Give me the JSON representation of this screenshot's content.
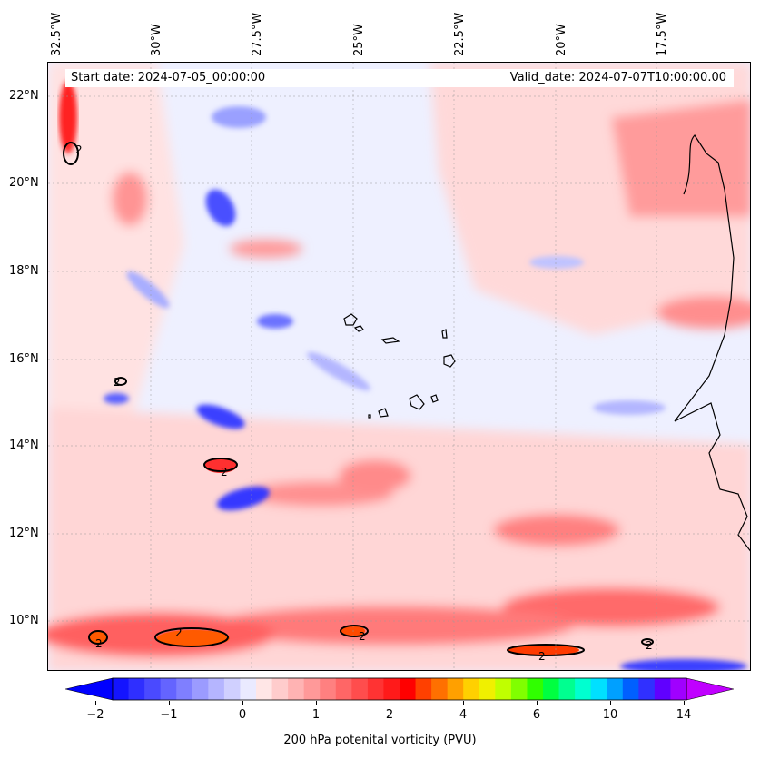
{
  "map": {
    "lon_labels": [
      "32.5°W",
      "30°W",
      "27.5°W",
      "25°W",
      "22.5°W",
      "20°W",
      "17.5°W"
    ],
    "lat_labels": [
      "22°N",
      "20°N",
      "18°N",
      "16°N",
      "14°N",
      "12°N",
      "10°N"
    ],
    "start_date": "Start date: 2024-07-05_00:00:00",
    "valid_date": "Valid_date: 2024-07-07T10:00:00.00",
    "contour_label": "2",
    "colorbar": {
      "ticks": [
        "−2",
        "−1",
        "0",
        "1",
        "2",
        "4",
        "6",
        "10",
        "14"
      ],
      "label": "200 hPa potenital vorticity (PVU)",
      "colors": [
        "#1414ff",
        "#2f2fff",
        "#4a4aff",
        "#6464ff",
        "#7f7fff",
        "#9b9bff",
        "#b5b5ff",
        "#d0d0ff",
        "#eaeaff",
        "#ffe6e6",
        "#ffcccc",
        "#ffb3b3",
        "#ff9999",
        "#ff8080",
        "#ff6666",
        "#ff4d4d",
        "#ff3333",
        "#ff1a1a",
        "#ff0000",
        "#ff4000",
        "#ff7000",
        "#ffa000",
        "#ffd000",
        "#f0f000",
        "#c0ff00",
        "#80ff00",
        "#30ff00",
        "#00ff40",
        "#00ff90",
        "#00ffd0",
        "#00e0ff",
        "#00a0ff",
        "#0060ff",
        "#3030ff",
        "#6000ff",
        "#a000ff"
      ],
      "under_color": "#0000ff",
      "over_color": "#c000ff"
    }
  }
}
